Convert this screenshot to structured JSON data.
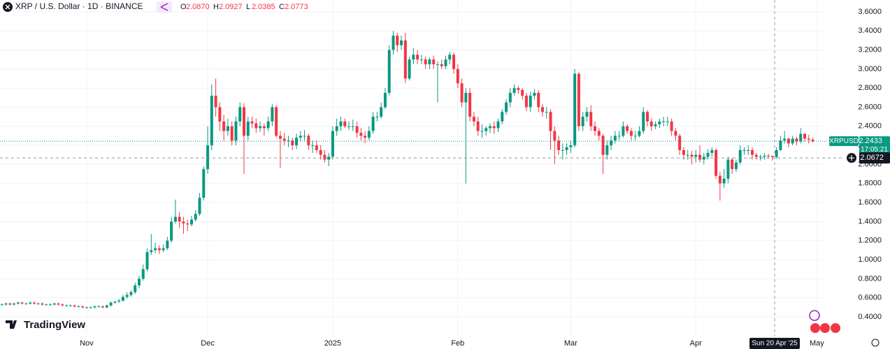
{
  "chart_data": {
    "type": "candlestick",
    "legend": {
      "symbol": "XRP / U.S. Dollar · 1D · BINANCE",
      "ohlc": [
        {
          "key": "O",
          "text": "2.0870"
        },
        {
          "key": "H",
          "text": "2.0927"
        },
        {
          "key": "L",
          "text": "2.0385"
        },
        {
          "key": "C",
          "text": "2.0773"
        }
      ]
    },
    "brand": "TradingView",
    "up_color": "#089981",
    "down_color": "#f23645",
    "grid": true,
    "categories": [
      null,
      null,
      null,
      null,
      null,
      null,
      null,
      null,
      null,
      null,
      null,
      null,
      null,
      null,
      null,
      null,
      null,
      null,
      null,
      null,
      null,
      "Nov",
      null,
      null,
      null,
      null,
      null,
      null,
      null,
      null,
      null,
      null,
      null,
      null,
      null,
      null,
      null,
      null,
      null,
      null,
      null,
      null,
      null,
      null,
      null,
      null,
      null,
      null,
      null,
      null,
      null,
      "Dec",
      null,
      null,
      null,
      null,
      null,
      null,
      null,
      null,
      null,
      null,
      null,
      null,
      null,
      null,
      null,
      null,
      null,
      null,
      null,
      null,
      null,
      null,
      null,
      null,
      null,
      null,
      null,
      null,
      null,
      null,
      "2025",
      null,
      null,
      null,
      null,
      null,
      null,
      null,
      null,
      null,
      null,
      null,
      null,
      null,
      null,
      null,
      null,
      null,
      null,
      null,
      null,
      null,
      null,
      null,
      null,
      null,
      null,
      null,
      null,
      null,
      null,
      "Feb",
      null,
      null,
      null,
      null,
      null,
      null,
      null,
      null,
      null,
      null,
      null,
      null,
      null,
      null,
      null,
      null,
      null,
      null,
      null,
      null,
      null,
      null,
      null,
      null,
      null,
      null,
      null,
      "Mar",
      null,
      null,
      null,
      null,
      null,
      null,
      null,
      null,
      null,
      null,
      null,
      null,
      null,
      null,
      null,
      null,
      null,
      null,
      null,
      null,
      null,
      null,
      null,
      null,
      null,
      null,
      null,
      null,
      null,
      null,
      "Apr",
      null,
      null,
      null,
      null,
      null,
      null,
      null,
      null,
      null,
      null,
      null,
      null,
      null,
      null,
      null,
      null,
      null,
      null,
      null,
      null,
      null,
      null,
      null,
      null,
      null,
      null,
      null,
      null,
      null,
      "May",
      null
    ],
    "open": [
      0.53,
      0.53,
      0.54,
      0.53,
      0.54,
      0.55,
      0.54,
      0.54,
      0.55,
      0.54,
      0.54,
      0.53,
      0.53,
      0.53,
      0.54,
      0.53,
      0.52,
      0.52,
      0.52,
      0.51,
      0.51,
      0.5,
      0.5,
      0.5,
      0.51,
      0.51,
      0.5,
      0.52,
      0.55,
      0.56,
      0.57,
      0.61,
      0.63,
      0.66,
      0.73,
      0.8,
      0.9,
      1.08,
      1.1,
      1.12,
      1.1,
      1.12,
      1.2,
      1.4,
      1.45,
      1.4,
      1.38,
      1.37,
      1.42,
      1.48,
      1.65,
      1.95,
      2.2,
      2.72,
      2.6,
      2.45,
      2.35,
      2.4,
      2.25,
      2.45,
      2.6,
      2.3,
      2.45,
      2.43,
      2.38,
      2.4,
      2.38,
      2.45,
      2.6,
      2.3,
      2.27,
      2.25,
      2.25,
      2.2,
      2.28,
      2.3,
      2.3,
      2.2,
      2.2,
      2.15,
      2.1,
      2.05,
      2.08,
      2.35,
      2.4,
      2.45,
      2.4,
      2.4,
      2.4,
      2.33,
      2.3,
      2.28,
      2.35,
      2.5,
      2.5,
      2.6,
      2.75,
      3.2,
      3.35,
      3.25,
      3.3,
      2.9,
      3.1,
      3.15,
      3.1,
      3.1,
      3.05,
      3.1,
      3.05,
      3.05,
      3.03,
      3.1,
      3.15,
      3.0,
      2.85,
      2.65,
      2.75,
      2.5,
      2.45,
      2.35,
      2.35,
      2.38,
      2.4,
      2.38,
      2.45,
      2.55,
      2.65,
      2.75,
      2.8,
      2.78,
      2.72,
      2.6,
      2.72,
      2.75,
      2.6,
      2.55,
      2.55,
      2.35,
      2.25,
      2.15,
      2.15,
      2.18,
      2.2,
      2.95,
      2.4,
      2.5,
      2.55,
      2.4,
      2.35,
      2.3,
      2.1,
      2.2,
      2.25,
      2.3,
      2.3,
      2.4,
      2.35,
      2.3,
      2.3,
      2.35,
      2.55,
      2.45,
      2.4,
      2.42,
      2.45,
      2.45,
      2.45,
      2.35,
      2.3,
      2.15,
      2.1,
      2.1,
      2.08,
      2.1,
      2.05,
      2.08,
      2.12,
      2.15,
      1.88,
      1.8,
      1.85,
      2.05,
      1.95,
      2.02,
      2.15,
      2.15,
      2.15,
      2.1,
      2.08,
      2.08,
      2.09,
      2.087,
      2.0773,
      2.15,
      2.25,
      2.27,
      2.22,
      2.27,
      2.24,
      2.32,
      2.27,
      2.26,
      null,
      null
    ],
    "high": [
      0.54,
      0.55,
      0.55,
      0.55,
      0.56,
      0.56,
      0.55,
      0.56,
      0.56,
      0.55,
      0.55,
      0.54,
      0.54,
      0.55,
      0.55,
      0.54,
      0.53,
      0.53,
      0.53,
      0.52,
      0.52,
      0.51,
      0.51,
      0.52,
      0.52,
      0.52,
      0.53,
      0.56,
      0.57,
      0.59,
      0.63,
      0.66,
      0.68,
      0.76,
      0.83,
      0.95,
      1.12,
      1.27,
      1.18,
      1.15,
      1.16,
      1.24,
      1.45,
      1.63,
      1.5,
      1.45,
      1.42,
      1.46,
      1.52,
      1.7,
      1.98,
      2.4,
      2.84,
      2.9,
      2.65,
      2.52,
      2.48,
      2.45,
      2.5,
      2.65,
      2.64,
      2.5,
      2.5,
      2.48,
      2.45,
      2.43,
      2.5,
      2.63,
      2.62,
      2.35,
      2.33,
      2.3,
      2.28,
      2.32,
      2.35,
      2.36,
      2.32,
      2.25,
      2.25,
      2.2,
      2.15,
      2.12,
      2.4,
      2.48,
      2.5,
      2.48,
      2.45,
      2.47,
      2.45,
      2.38,
      2.35,
      2.4,
      2.55,
      2.55,
      2.65,
      2.8,
      3.25,
      3.4,
      3.38,
      3.35,
      3.38,
      3.13,
      3.22,
      3.2,
      3.15,
      3.13,
      3.12,
      3.14,
      3.08,
      3.1,
      3.14,
      3.18,
      3.17,
      3.05,
      2.9,
      2.8,
      2.8,
      2.55,
      2.5,
      2.42,
      2.4,
      2.43,
      2.45,
      2.48,
      2.58,
      2.68,
      2.8,
      2.84,
      2.82,
      2.8,
      2.75,
      2.76,
      2.79,
      2.78,
      2.63,
      2.6,
      2.58,
      2.4,
      2.3,
      2.22,
      2.22,
      2.25,
      3.0,
      2.97,
      2.55,
      2.6,
      2.62,
      2.45,
      2.38,
      2.32,
      2.25,
      2.3,
      2.35,
      2.35,
      2.45,
      2.42,
      2.38,
      2.35,
      2.4,
      2.6,
      2.57,
      2.48,
      2.45,
      2.48,
      2.5,
      2.5,
      2.48,
      2.38,
      2.32,
      2.18,
      2.15,
      2.14,
      2.15,
      2.2,
      2.12,
      2.16,
      2.18,
      2.17,
      1.92,
      1.95,
      2.08,
      2.07,
      2.05,
      2.2,
      2.18,
      2.2,
      2.18,
      2.12,
      2.1,
      2.12,
      2.11,
      2.0927,
      2.18,
      2.3,
      2.35,
      2.28,
      2.3,
      2.29,
      2.38,
      2.33,
      2.31,
      2.28,
      null,
      null
    ],
    "low": [
      0.52,
      0.52,
      0.52,
      0.52,
      0.53,
      0.53,
      0.53,
      0.53,
      0.53,
      0.53,
      0.52,
      0.52,
      0.52,
      0.52,
      0.52,
      0.51,
      0.51,
      0.51,
      0.5,
      0.5,
      0.49,
      0.49,
      0.49,
      0.49,
      0.5,
      0.49,
      0.49,
      0.51,
      0.54,
      0.55,
      0.56,
      0.59,
      0.61,
      0.64,
      0.7,
      0.78,
      0.88,
      1.05,
      1.07,
      1.06,
      1.08,
      1.1,
      1.18,
      1.38,
      1.33,
      1.27,
      1.3,
      1.35,
      1.4,
      1.46,
      1.62,
      1.9,
      2.15,
      2.5,
      2.35,
      2.25,
      2.3,
      2.2,
      2.2,
      2.4,
      1.9,
      2.25,
      2.38,
      2.33,
      2.34,
      2.3,
      2.35,
      2.4,
      2.28,
      1.96,
      2.2,
      2.18,
      2.15,
      2.16,
      2.24,
      2.25,
      2.15,
      2.12,
      2.12,
      2.05,
      2.02,
      1.98,
      2.05,
      2.3,
      2.35,
      2.38,
      2.36,
      2.35,
      2.28,
      2.25,
      2.22,
      2.25,
      2.32,
      2.45,
      2.48,
      2.58,
      2.72,
      3.15,
      3.18,
      3.2,
      2.85,
      2.88,
      3.05,
      3.05,
      3.05,
      3.0,
      3.0,
      3.0,
      2.65,
      3.0,
      3.0,
      3.05,
      2.95,
      2.8,
      2.6,
      1.8,
      2.45,
      2.4,
      2.3,
      2.28,
      2.3,
      2.33,
      2.32,
      2.34,
      2.42,
      2.52,
      2.6,
      2.72,
      2.74,
      2.68,
      2.56,
      2.55,
      2.68,
      2.55,
      2.5,
      2.48,
      2.15,
      2.0,
      2.1,
      2.05,
      2.1,
      2.12,
      2.18,
      2.35,
      2.35,
      2.45,
      2.35,
      2.3,
      2.25,
      1.9,
      2.05,
      2.15,
      2.22,
      2.25,
      2.28,
      2.32,
      2.25,
      2.25,
      2.28,
      2.32,
      2.4,
      2.35,
      2.37,
      2.38,
      2.4,
      2.4,
      2.3,
      2.25,
      2.1,
      2.05,
      2.05,
      2.0,
      2.02,
      2.02,
      2.0,
      2.05,
      2.08,
      1.85,
      1.62,
      1.75,
      1.8,
      1.9,
      1.92,
      2.0,
      2.1,
      2.1,
      2.05,
      2.05,
      2.04,
      2.05,
      2.06,
      2.0385,
      2.06,
      2.14,
      2.22,
      2.18,
      2.2,
      2.2,
      2.22,
      2.24,
      2.22,
      2.23,
      null,
      null
    ],
    "close": [
      0.53,
      0.54,
      0.53,
      0.54,
      0.55,
      0.54,
      0.54,
      0.55,
      0.54,
      0.54,
      0.53,
      0.53,
      0.53,
      0.54,
      0.53,
      0.52,
      0.52,
      0.52,
      0.51,
      0.51,
      0.5,
      0.5,
      0.5,
      0.51,
      0.51,
      0.5,
      0.52,
      0.55,
      0.56,
      0.57,
      0.61,
      0.63,
      0.66,
      0.73,
      0.8,
      0.9,
      1.08,
      1.1,
      1.12,
      1.1,
      1.12,
      1.2,
      1.4,
      1.45,
      1.4,
      1.38,
      1.37,
      1.42,
      1.48,
      1.65,
      1.95,
      2.2,
      2.72,
      2.6,
      2.45,
      2.35,
      2.4,
      2.25,
      2.45,
      2.6,
      2.3,
      2.45,
      2.43,
      2.38,
      2.4,
      2.38,
      2.45,
      2.6,
      2.3,
      2.27,
      2.25,
      2.25,
      2.2,
      2.28,
      2.3,
      2.3,
      2.2,
      2.2,
      2.15,
      2.1,
      2.05,
      2.08,
      2.35,
      2.4,
      2.45,
      2.4,
      2.4,
      2.4,
      2.33,
      2.3,
      2.28,
      2.35,
      2.5,
      2.5,
      2.6,
      2.75,
      3.2,
      3.35,
      3.25,
      3.3,
      2.9,
      3.1,
      3.15,
      3.1,
      3.1,
      3.05,
      3.1,
      3.05,
      3.05,
      3.03,
      3.1,
      3.15,
      3.0,
      2.85,
      2.65,
      2.75,
      2.5,
      2.45,
      2.35,
      2.35,
      2.38,
      2.4,
      2.38,
      2.45,
      2.55,
      2.65,
      2.75,
      2.8,
      2.78,
      2.72,
      2.6,
      2.72,
      2.75,
      2.6,
      2.55,
      2.55,
      2.35,
      2.25,
      2.15,
      2.15,
      2.18,
      2.2,
      2.95,
      2.4,
      2.5,
      2.55,
      2.4,
      2.35,
      2.3,
      2.1,
      2.2,
      2.25,
      2.3,
      2.3,
      2.4,
      2.35,
      2.3,
      2.3,
      2.35,
      2.55,
      2.45,
      2.4,
      2.42,
      2.45,
      2.45,
      2.45,
      2.35,
      2.3,
      2.15,
      2.1,
      2.1,
      2.08,
      2.1,
      2.05,
      2.08,
      2.12,
      2.15,
      1.88,
      1.8,
      1.85,
      2.05,
      1.95,
      2.02,
      2.15,
      2.15,
      2.15,
      2.1,
      2.08,
      2.08,
      2.09,
      2.087,
      2.0773,
      2.15,
      2.25,
      2.27,
      2.22,
      2.27,
      2.24,
      2.32,
      2.27,
      2.26,
      2.2433,
      null,
      null
    ],
    "ylim": [
      0.195,
      3.724
    ],
    "yticks": [
      {
        "value": 0.4,
        "label": "0.4000"
      },
      {
        "value": 0.6,
        "label": "0.6000"
      },
      {
        "value": 0.8,
        "label": "0.8000"
      },
      {
        "value": 1.0,
        "label": "1.0000"
      },
      {
        "value": 1.2,
        "label": "1.2000"
      },
      {
        "value": 1.4,
        "label": "1.4000"
      },
      {
        "value": 1.6,
        "label": "1.6000"
      },
      {
        "value": 1.8,
        "label": "1.8000"
      },
      {
        "value": 2.0,
        "label": "2.0000"
      },
      {
        "value": 2.2,
        "label": "2.2000"
      },
      {
        "value": 2.4,
        "label": "2.4000"
      },
      {
        "value": 2.6,
        "label": "2.6000"
      },
      {
        "value": 2.8,
        "label": "2.8000"
      },
      {
        "value": 3.0,
        "label": "3.0000"
      },
      {
        "value": 3.2,
        "label": "3.2000"
      },
      {
        "value": 3.4,
        "label": "3.4000"
      },
      {
        "value": 3.6,
        "label": "3.6000"
      }
    ],
    "last_price": {
      "label": "XRPUSD",
      "value": 2.2433,
      "countdown": "17:05:21"
    },
    "crosshair": {
      "date_label": "Sun 20 Apr '25",
      "price": 2.0672
    }
  }
}
